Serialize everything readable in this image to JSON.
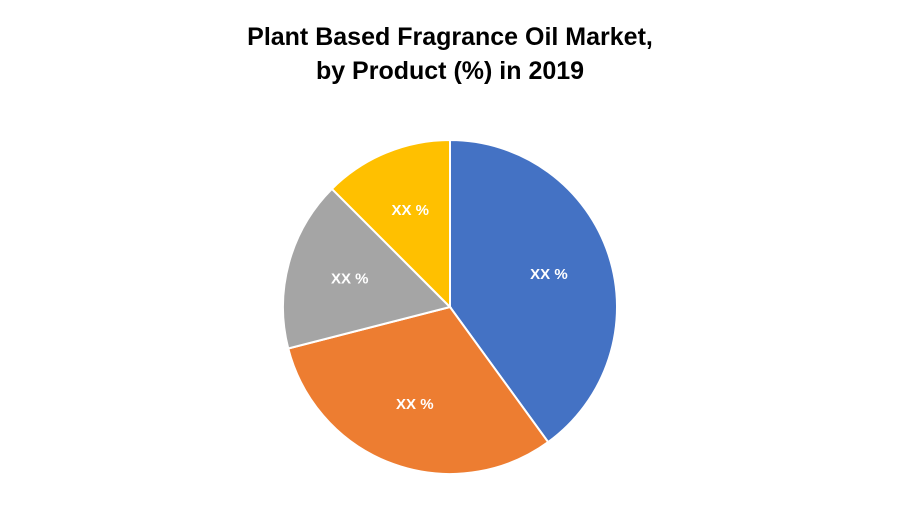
{
  "chart_data": {
    "type": "pie",
    "title_line1": "Plant Based Fragrance  Oil Market,",
    "title_line2": "by Product (%) in 2019",
    "slices": [
      {
        "label": "XX %",
        "value": 40,
        "color": "#4472C4"
      },
      {
        "label": "XX %",
        "value": 31,
        "color": "#ED7D31"
      },
      {
        "label": "XX %",
        "value": 16.5,
        "color": "#A5A5A5"
      },
      {
        "label": "XX %",
        "value": 12.5,
        "color": "#FFC000"
      }
    ],
    "legend": "none"
  }
}
